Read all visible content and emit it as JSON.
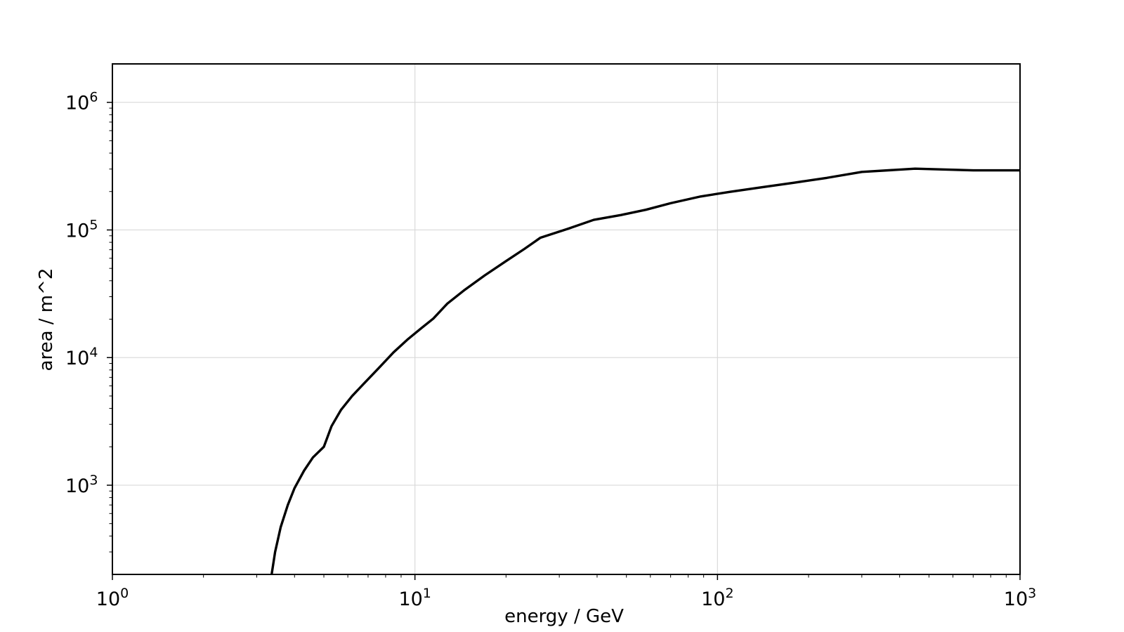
{
  "chart_data": {
    "type": "line",
    "title": "",
    "xlabel": "energy / GeV",
    "ylabel": "area / m^2",
    "xscale": "log",
    "yscale": "log",
    "xlim": [
      1,
      1000
    ],
    "ylim": [
      200,
      2000000
    ],
    "grid": true,
    "legend": "none",
    "line_color": "#000000",
    "x_ticks": [
      {
        "base": "10",
        "exp": "0",
        "value": 1
      },
      {
        "base": "10",
        "exp": "1",
        "value": 10
      },
      {
        "base": "10",
        "exp": "2",
        "value": 100
      },
      {
        "base": "10",
        "exp": "3",
        "value": 1000
      }
    ],
    "y_ticks": [
      {
        "base": "10",
        "exp": "3",
        "value": 1000
      },
      {
        "base": "10",
        "exp": "4",
        "value": 10000
      },
      {
        "base": "10",
        "exp": "5",
        "value": 100000
      },
      {
        "base": "10",
        "exp": "6",
        "value": 1000000
      }
    ],
    "series": [
      {
        "x": [
          3.36,
          3.45,
          3.6,
          3.8,
          4.0,
          4.3,
          4.6,
          5.0,
          5.3,
          5.7,
          6.2,
          6.8,
          7.6,
          8.5,
          9.5,
          10.5,
          11.5,
          12.8,
          14.5,
          17.0,
          20.0,
          23.0,
          26.0,
          32.0,
          39.0,
          48.0,
          58.0,
          70.0,
          88.0,
          110.0,
          140.0,
          180.0,
          230.0,
          300.0,
          450.0,
          700.0,
          1000.0
        ],
        "y": [
          200,
          300,
          470,
          700,
          950,
          1300,
          1650,
          2000,
          2900,
          3900,
          5000,
          6300,
          8300,
          11000,
          14000,
          17000,
          20200,
          26500,
          33500,
          44000,
          57000,
          71000,
          87000,
          102000,
          120000,
          131000,
          144000,
          162000,
          183000,
          199000,
          216000,
          235000,
          256000,
          285000,
          302000,
          293000,
          293000
        ]
      }
    ]
  }
}
